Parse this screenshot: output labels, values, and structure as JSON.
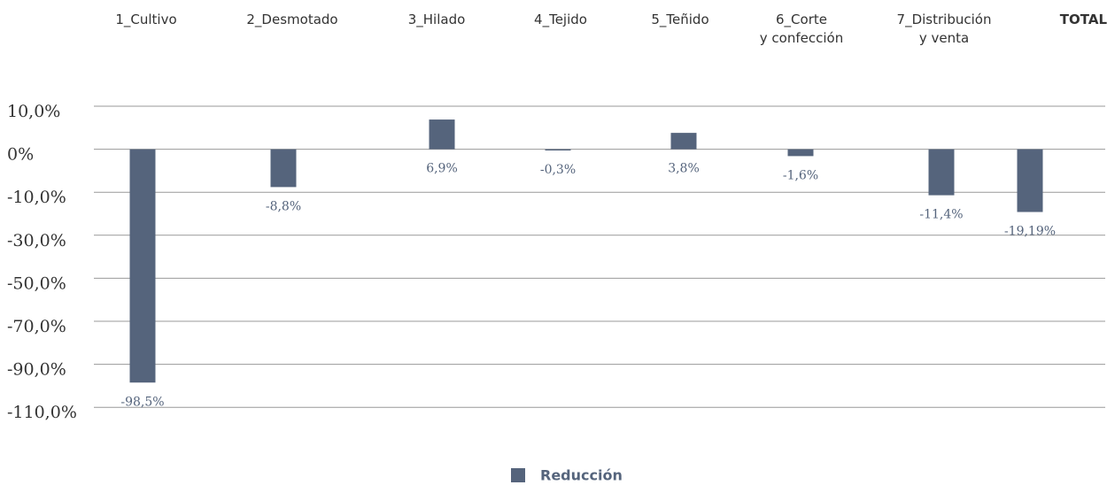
{
  "chart_data": {
    "type": "bar",
    "categories": [
      "1_Cultivo",
      "2_Desmotado",
      "3_Hilado",
      "4_Tejido",
      "5_Teñido",
      "6_Corte\ny confección",
      "7_Distribución\ny venta",
      "TOTAL"
    ],
    "series": [
      {
        "name": "Reducción",
        "color": "#55647c",
        "values": [
          -98.5,
          -8.8,
          6.9,
          -0.3,
          3.8,
          -1.6,
          -11.4,
          -19.19
        ],
        "value_labels": [
          "-98,5%",
          "-8,8%",
          "6,9%",
          "-0,3%",
          "3,8%",
          "-1,6%",
          "-11,4%",
          "-19,19%"
        ]
      }
    ],
    "ylim": [
      -110,
      10
    ],
    "yticks": [
      {
        "value": 10,
        "label": "10,0%"
      },
      {
        "value": 0,
        "label": "0%"
      },
      {
        "value": -10,
        "label": "-10,0%"
      },
      {
        "value": -30,
        "label": "-30,0%"
      },
      {
        "value": -50,
        "label": "-50,0%"
      },
      {
        "value": -70,
        "label": "-70,0%"
      },
      {
        "value": -90,
        "label": "-90,0%"
      },
      {
        "value": -110,
        "label": "-110,0%"
      }
    ],
    "grid": true,
    "legend": "bottom"
  }
}
